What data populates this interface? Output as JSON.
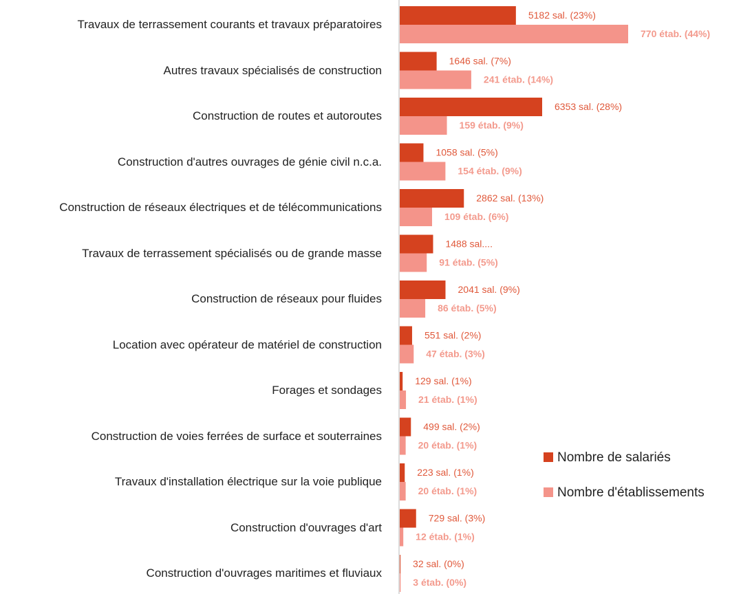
{
  "chart_data": {
    "type": "bar",
    "orientation": "horizontal",
    "legend": "right",
    "categories": [
      "Travaux de terrassement courants et travaux préparatoires",
      "Autres travaux spécialisés de construction",
      "Construction de routes et autoroutes",
      "Construction d'autres ouvrages de génie civil n.c.a.",
      "Construction de réseaux électriques et de télécommunications",
      "Travaux de terrassement spécialisés ou de grande masse",
      "Construction de réseaux pour fluides",
      "Location avec opérateur de matériel de construction",
      "Forages et sondages",
      "Construction de voies ferrées de surface et souterraines",
      "Travaux d'installation électrique sur la voie publique",
      "Construction d'ouvrages d'art",
      "Construction d'ouvrages maritimes et fluviaux"
    ],
    "series": [
      {
        "name": "Nombre de salariés",
        "color": "#d5421f",
        "label_color": "#e0583a",
        "values": [
          5182,
          1646,
          6353,
          1058,
          2862,
          1488,
          2041,
          551,
          129,
          499,
          223,
          729,
          32
        ],
        "value_labels": [
          "5182 sal. (23%)",
          "1646 sal. (7%)",
          "6353 sal. (28%)",
          "1058 sal. (5%)",
          "2862 sal. (13%)",
          "1488 sal....",
          "2041 sal. (9%)",
          "551 sal. (2%)",
          "129 sal. (1%)",
          "499 sal. (2%)",
          "223 sal. (1%)",
          "729 sal. (3%)",
          "32 sal. (0%)"
        ]
      },
      {
        "name": "Nombre d'établissements",
        "color": "#f4948a",
        "label_color": "#f39a8d",
        "values": [
          770,
          241,
          159,
          154,
          109,
          91,
          86,
          47,
          21,
          20,
          20,
          12,
          3
        ],
        "value_labels": [
          "770 étab. (44%)",
          "241 étab. (14%)",
          "159 étab. (9%)",
          "154 étab. (9%)",
          "109 étab. (6%)",
          "91 étab. (5%)",
          "86 étab. (5%)",
          "47 étab. (3%)",
          "21 étab. (1%)",
          "20 étab. (1%)",
          "20 étab. (1%)",
          "12 étab. (1%)",
          "3 étab. (0%)"
        ]
      }
    ]
  }
}
